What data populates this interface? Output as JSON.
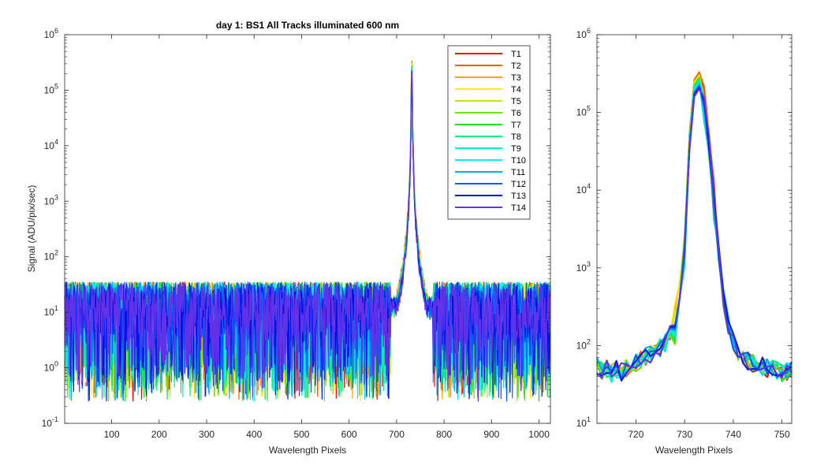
{
  "chart_data": [
    {
      "type": "line",
      "title": "day 1: BS1   All Tracks illuminated   600 nm",
      "xlabel": "Wavelength Pixels",
      "ylabel": "Signal (ADU/pix/sec)",
      "xlim": [
        1,
        1024
      ],
      "ylim": [
        0.1,
        1000000
      ],
      "yscale": "log",
      "xticks": [
        100,
        200,
        300,
        400,
        500,
        600,
        700,
        800,
        900,
        1000
      ],
      "xtick_labels": [
        "100",
        "200",
        "300",
        "400",
        "500",
        "600",
        "700",
        "800",
        "900",
        "1000"
      ],
      "yticks": [
        0.1,
        1,
        10,
        100,
        1000,
        10000,
        100000,
        1000000
      ],
      "ytick_labels": [
        {
          "base": "10",
          "exp": "-1"
        },
        {
          "base": "10",
          "exp": "0"
        },
        {
          "base": "10",
          "exp": "1"
        },
        {
          "base": "10",
          "exp": "2"
        },
        {
          "base": "10",
          "exp": "3"
        },
        {
          "base": "10",
          "exp": "4"
        },
        {
          "base": "10",
          "exp": "5"
        },
        {
          "base": "10",
          "exp": "6"
        }
      ],
      "grid": false,
      "legend_position": "top-right",
      "peak": {
        "x": 732,
        "y": 300000
      },
      "noise_floor": {
        "typical": 10,
        "min": 0.25,
        "max": 45
      },
      "series": [
        {
          "name": "T1",
          "color": "#ff0000",
          "peak": 320000
        },
        {
          "name": "T2",
          "color": "#ff5a00",
          "peak": 330000
        },
        {
          "name": "T3",
          "color": "#ffa500",
          "peak": 310000
        },
        {
          "name": "T4",
          "color": "#ffee00",
          "peak": 300000
        },
        {
          "name": "T5",
          "color": "#b4f000",
          "peak": 290000
        },
        {
          "name": "T6",
          "color": "#64e600",
          "peak": 280000
        },
        {
          "name": "T7",
          "color": "#1ee61e",
          "peak": 270000
        },
        {
          "name": "T8",
          "color": "#00f07a",
          "peak": 260000
        },
        {
          "name": "T9",
          "color": "#00f0c8",
          "peak": 250000
        },
        {
          "name": "T10",
          "color": "#00ecec",
          "peak": 240000
        },
        {
          "name": "T11",
          "color": "#00aaff",
          "peak": 230000
        },
        {
          "name": "T12",
          "color": "#005aff",
          "peak": 220000
        },
        {
          "name": "T13",
          "color": "#0014e6",
          "peak": 210000
        },
        {
          "name": "T14",
          "color": "#6432e6",
          "peak": 200000
        }
      ]
    },
    {
      "type": "line",
      "title": "",
      "xlabel": "Wavelength Pixels",
      "ylabel": "",
      "xlim": [
        712,
        752
      ],
      "ylim": [
        10,
        1000000
      ],
      "yscale": "log",
      "xticks": [
        720,
        730,
        740,
        750
      ],
      "xtick_labels": [
        "720",
        "730",
        "740",
        "750"
      ],
      "yticks": [
        10,
        100,
        1000,
        10000,
        100000,
        1000000
      ],
      "ytick_labels": [
        {
          "base": "10",
          "exp": "1"
        },
        {
          "base": "10",
          "exp": "2"
        },
        {
          "base": "10",
          "exp": "3"
        },
        {
          "base": "10",
          "exp": "4"
        },
        {
          "base": "10",
          "exp": "5"
        },
        {
          "base": "10",
          "exp": "6"
        }
      ],
      "grid": false,
      "legend_position": "none",
      "x": [
        712,
        713,
        714,
        715,
        716,
        717,
        718,
        719,
        720,
        721,
        722,
        723,
        724,
        725,
        726,
        727,
        728,
        729,
        730,
        731,
        732,
        733,
        734,
        735,
        736,
        737,
        738,
        739,
        740,
        741,
        742,
        743,
        744,
        745,
        746,
        747,
        748,
        749,
        750,
        751,
        752
      ],
      "profile": [
        55,
        48,
        52,
        45,
        50,
        47,
        52,
        58,
        60,
        65,
        72,
        78,
        85,
        95,
        110,
        140,
        200,
        400,
        2000,
        40000,
        200000,
        250000,
        120000,
        40000,
        8000,
        1500,
        400,
        180,
        110,
        80,
        70,
        65,
        60,
        58,
        55,
        52,
        50,
        48,
        45,
        48,
        50
      ]
    }
  ]
}
